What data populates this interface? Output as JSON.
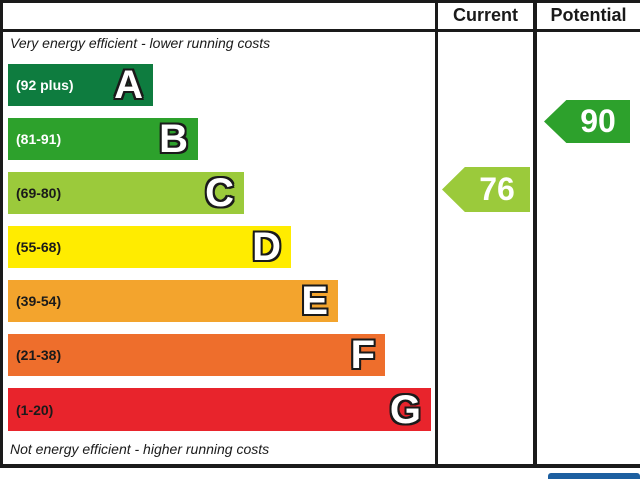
{
  "header": {
    "current_label": "Current",
    "potential_label": "Potential"
  },
  "captions": {
    "top": "Very energy efficient - lower running costs",
    "bottom": "Not energy efficient - higher running costs"
  },
  "bands": [
    {
      "letter": "A",
      "range": "(92 plus)",
      "color": "#0e7c3f",
      "label_color": "#ffffff"
    },
    {
      "letter": "B",
      "range": "(81-91)",
      "color": "#2da12c",
      "label_color": "#ffffff"
    },
    {
      "letter": "C",
      "range": "(69-80)",
      "color": "#9bca3b",
      "label_color": "#1a1a1a"
    },
    {
      "letter": "D",
      "range": "(55-68)",
      "color": "#ffec00",
      "label_color": "#1a1a1a"
    },
    {
      "letter": "E",
      "range": "(39-54)",
      "color": "#f3a42d",
      "label_color": "#1a1a1a"
    },
    {
      "letter": "F",
      "range": "(21-38)",
      "color": "#ee6e2c",
      "label_color": "#1a1a1a"
    },
    {
      "letter": "G",
      "range": "(1-20)",
      "color": "#e8242c",
      "label_color": "#1a1a1a"
    }
  ],
  "current": {
    "value": "76",
    "band": "C",
    "color": "#9bca3b"
  },
  "potential": {
    "value": "90",
    "band": "B",
    "color": "#2da12c"
  },
  "misc": {
    "border_color": "#1a1a1a",
    "next_section_partial_color": "#1d5fa0"
  },
  "chart_data": {
    "type": "bar",
    "subtype": "epc-energy-efficiency-rating",
    "categories": [
      "A",
      "B",
      "C",
      "D",
      "E",
      "F",
      "G"
    ],
    "band_ranges": [
      "92 plus",
      "81-91",
      "69-80",
      "55-68",
      "39-54",
      "21-38",
      "1-20"
    ],
    "band_colors": [
      "#0e7c3f",
      "#2da12c",
      "#9bca3b",
      "#ffec00",
      "#f3a42d",
      "#ee6e2c",
      "#e8242c"
    ],
    "series": [
      {
        "name": "Current",
        "values": [
          76
        ],
        "band": "C",
        "color": "#9bca3b"
      },
      {
        "name": "Potential",
        "values": [
          90
        ],
        "band": "B",
        "color": "#2da12c"
      }
    ],
    "annotations": [
      "Very energy efficient - lower running costs",
      "Not energy efficient - higher running costs"
    ],
    "legend_position": "none",
    "grid": false
  }
}
